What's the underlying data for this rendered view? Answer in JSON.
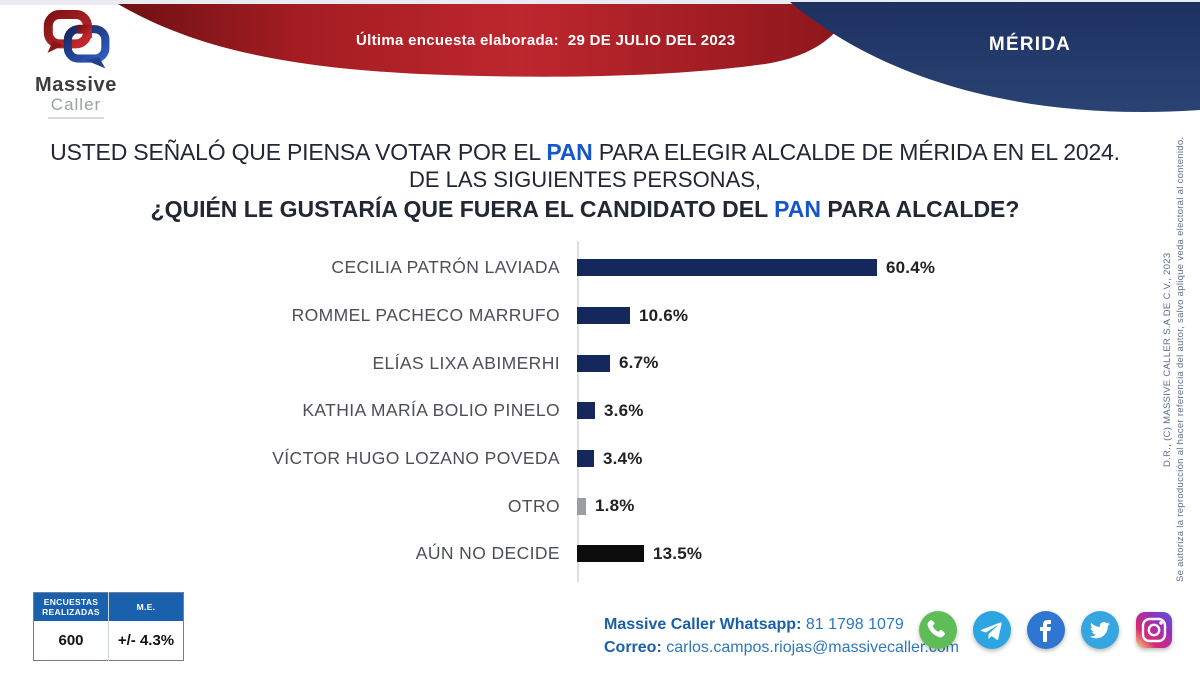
{
  "header": {
    "banner_label": "Última encuesta elaborada:",
    "banner_date": "29 DE JULIO DEL 2023",
    "region": "MÉRIDA",
    "logo_word1": "Massive",
    "logo_word2": "Caller"
  },
  "title": {
    "line1_pre": "USTED SEÑALÓ QUE PIENSA VOTAR POR EL ",
    "line1_accent": "PAN",
    "line1_post": " PARA ELEGIR ALCALDE DE MÉRIDA  EN EL 2024.",
    "line2": "DE LAS SIGUIENTES PERSONAS,",
    "line3_pre": "¿QUIÉN LE GUSTARÍA QUE FUERA EL CANDIDATO DEL ",
    "line3_accent": "PAN",
    "line3_post": " PARA ALCALDE?"
  },
  "chart_data": {
    "type": "bar",
    "orientation": "horizontal",
    "categories": [
      "CECILIA PATRÓN LAVIADA",
      "ROMMEL PACHECO MARRUFO",
      "ELÍAS LIXA ABIMERHI",
      "KATHIA MARÍA BOLIO PINELO",
      "VÍCTOR HUGO LOZANO POVEDA",
      "OTRO",
      "AÚN NO DECIDE"
    ],
    "values": [
      60.4,
      10.6,
      6.7,
      3.6,
      3.4,
      1.8,
      13.5
    ],
    "value_labels": [
      "60.4%",
      "10.6%",
      "6.7%",
      "3.6%",
      "3.4%",
      "1.8%",
      "13.5%"
    ],
    "bar_colors": [
      "#14285c",
      "#14285c",
      "#14285c",
      "#14285c",
      "#14285c",
      "#9c9ea1",
      "#0c0c0c"
    ],
    "xlim": [
      0,
      62
    ],
    "grid": false,
    "legend": false,
    "title": "¿QUIÉN LE GUSTARÍA QUE FUERA EL CANDIDATO DEL PAN PARA ALCALDE?"
  },
  "stats_table": {
    "header1": "ENCUESTAS REALIZADAS",
    "header2": "M.E.",
    "value1": "600",
    "value2": "+/- 4.3%"
  },
  "contact": {
    "whatsapp_label": "Massive Caller Whatsapp:",
    "whatsapp_value": "81 1798 1079",
    "email_label": "Correo:",
    "email_value": "carlos.campos.riojas@massivecaller.com"
  },
  "social_icons": [
    "whatsapp",
    "telegram",
    "facebook",
    "twitter",
    "instagram"
  ],
  "copyright": {
    "line1": "D.R., (C) MASSIVE CALLER S.A DE C.V., 2023",
    "line2": "Se autoriza la reproducción al hacer referencia del autor, salvo aplique veda electoral al contenido."
  },
  "colors": {
    "bar_navy": "#14285c",
    "bar_gray": "#9c9ea1",
    "bar_black": "#0c0c0c",
    "accent_blue": "#1457cb",
    "banner_red": "#b22228",
    "banner_navy": "#22386a",
    "table_header_blue": "#1a61ad",
    "contact_blue": "#1c5fa9",
    "whatsapp_green": "#5fbd56",
    "telegram_blue": "#2ca5e0",
    "facebook_blue": "#2e76d2",
    "twitter_blue": "#35a6e0"
  }
}
